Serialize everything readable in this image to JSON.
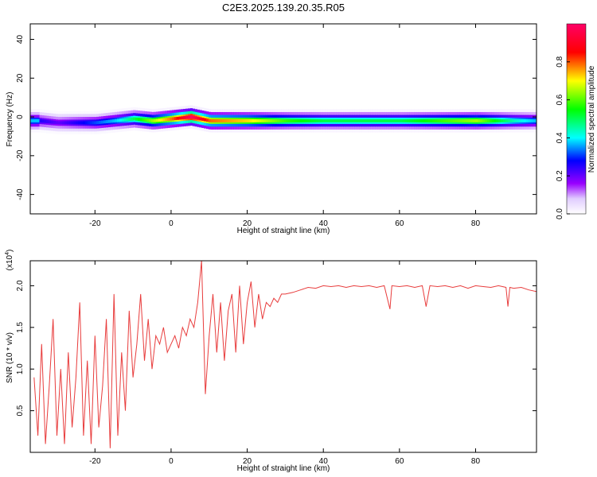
{
  "title": "C2E3.2025.139.20.35.R05",
  "chart_data": [
    {
      "type": "heatmap",
      "xlabel": "Height of straight line (km)",
      "ylabel": "Frequency (Hz)",
      "xlim": [
        -37,
        96
      ],
      "ylim": [
        -50,
        48
      ],
      "xticks": [
        -20,
        0,
        20,
        40,
        60,
        80
      ],
      "yticks": [
        -40,
        -20,
        0,
        20,
        40
      ],
      "colorbar": {
        "label": "Normalized spectral amplitude",
        "range": [
          0,
          1
        ],
        "ticks": [
          0.0,
          0.2,
          0.4,
          0.6,
          0.8
        ],
        "tick_labels": [
          "0.0",
          "0.2",
          "0.4",
          "0.6",
          "0.8"
        ],
        "colormap": [
          "#ffffff",
          "#e0ccff",
          "#9900ff",
          "#0000ff",
          "#00ffff",
          "#00ff00",
          "#ffff00",
          "#ff0000",
          "#ff0066"
        ]
      },
      "ridge": {
        "x": [
          -35,
          -30,
          -25,
          -20,
          -15,
          -10,
          -5,
          0,
          5,
          10,
          20,
          30,
          40,
          50,
          60,
          70,
          80,
          90,
          95
        ],
        "center_freq": [
          -2,
          -3,
          -3,
          -3,
          -2,
          -1,
          -2,
          -1,
          0,
          -2,
          -2,
          -2,
          -2,
          -2,
          -2,
          -2,
          -2,
          -2,
          -2
        ],
        "amplitude": [
          0.3,
          0.25,
          0.3,
          0.35,
          0.4,
          0.5,
          0.6,
          0.7,
          0.85,
          0.7,
          0.65,
          0.55,
          0.5,
          0.5,
          0.5,
          0.55,
          0.6,
          0.45,
          0.4
        ]
      }
    },
    {
      "type": "line",
      "xlabel": "Height of straight line (km)",
      "ylabel": "SNR (10 * v/v)",
      "scale_label": "(x10^4)",
      "xlim": [
        -37,
        96
      ],
      "ylim": [
        0,
        2.3
      ],
      "xticks": [
        -20,
        0,
        20,
        40,
        60,
        80
      ],
      "yticks": [
        0.5,
        1.0,
        1.5,
        2.0
      ],
      "series": [
        {
          "color": "#e83c3c",
          "x": [
            -36,
            -35,
            -34,
            -33,
            -32,
            -31,
            -30,
            -29,
            -28,
            -27,
            -26,
            -25,
            -24,
            -23,
            -22,
            -21,
            -20,
            -19,
            -18,
            -17,
            -16,
            -15,
            -14,
            -13,
            -12,
            -11,
            -10,
            -9,
            -8,
            -7,
            -6,
            -5,
            -4,
            -3,
            -2,
            -1,
            0,
            1,
            2,
            3,
            4,
            5,
            6,
            7,
            8,
            9,
            10,
            11,
            12,
            13,
            14,
            15,
            16,
            17,
            18,
            19,
            20,
            21,
            22,
            23,
            24,
            25,
            26,
            27,
            28,
            29,
            30,
            32,
            34,
            36,
            38,
            40,
            42,
            44,
            46,
            48,
            50,
            52,
            54,
            56,
            57.5,
            58,
            60,
            62,
            64,
            66,
            67,
            68,
            70,
            72,
            74,
            76,
            78,
            80,
            82,
            84,
            86,
            88,
            88.5,
            89,
            90,
            92,
            94,
            96
          ],
          "values": [
            0.9,
            0.2,
            1.3,
            0.1,
            0.8,
            1.6,
            0.2,
            1.0,
            0.1,
            1.2,
            0.3,
            0.9,
            1.8,
            0.2,
            1.1,
            0.1,
            1.4,
            0.3,
            0.8,
            1.6,
            0.05,
            1.9,
            0.2,
            1.2,
            0.5,
            1.7,
            0.9,
            1.3,
            1.9,
            1.1,
            1.6,
            1.0,
            1.4,
            1.3,
            1.5,
            1.2,
            1.3,
            1.4,
            1.25,
            1.5,
            1.4,
            1.6,
            1.5,
            1.8,
            2.3,
            0.7,
            1.4,
            1.9,
            1.2,
            1.8,
            1.1,
            1.7,
            1.9,
            1.2,
            2.0,
            1.3,
            1.8,
            2.05,
            1.5,
            1.9,
            1.6,
            1.8,
            1.75,
            1.85,
            1.8,
            1.9,
            1.9,
            1.92,
            1.95,
            1.98,
            1.97,
            2.0,
            1.99,
            2.0,
            1.98,
            2.0,
            1.99,
            2.0,
            1.98,
            2.0,
            1.72,
            2.0,
            1.99,
            2.0,
            1.98,
            2.0,
            1.75,
            2.0,
            1.99,
            2.0,
            1.98,
            2.0,
            1.97,
            2.0,
            1.99,
            1.98,
            2.0,
            1.98,
            1.75,
            1.98,
            1.97,
            1.98,
            1.95,
            1.93
          ]
        }
      ]
    }
  ]
}
